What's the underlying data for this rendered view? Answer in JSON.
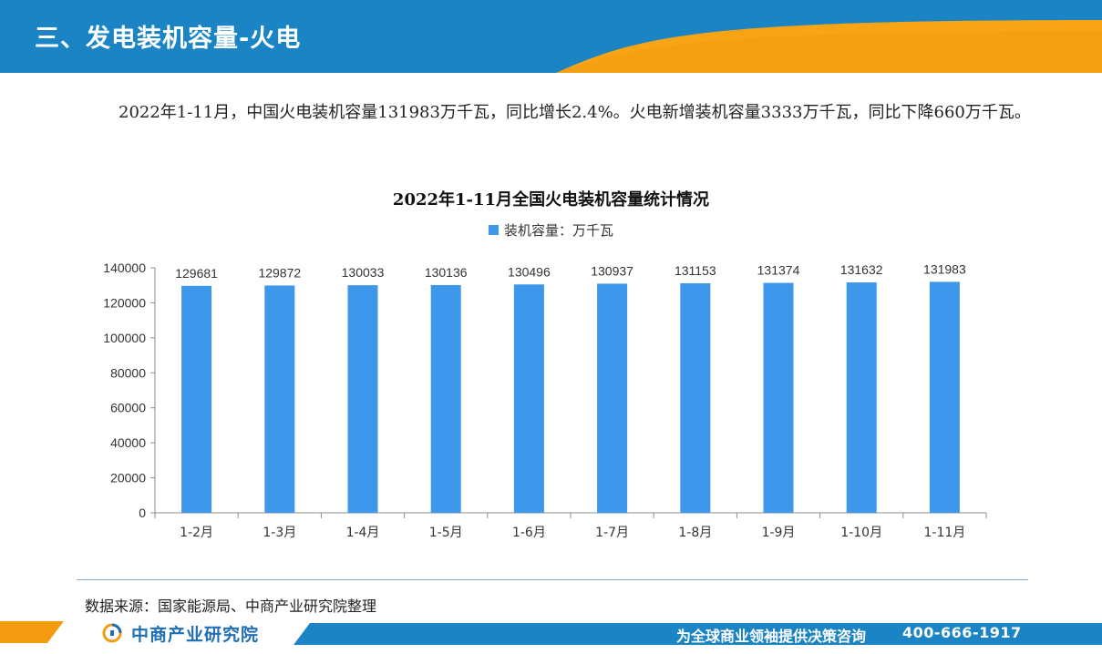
{
  "header": {
    "title": "三、发电装机容量-火电"
  },
  "summary": {
    "text": "2022年1-11月，中国火电装机容量131983万千瓦，同比增长2.4%。火电新增装机容量3333万千瓦，同比下降660万千瓦。"
  },
  "chart_data": {
    "type": "bar",
    "title": "2022年1-11月全国火电装机容量统计情况",
    "xlabel": "",
    "ylabel": "",
    "categories": [
      "1-2月",
      "1-3月",
      "1-4月",
      "1-5月",
      "1-6月",
      "1-7月",
      "1-8月",
      "1-9月",
      "1-10月",
      "1-11月"
    ],
    "series": [
      {
        "name": "装机容量：万千瓦",
        "values": [
          129681,
          129872,
          130033,
          130136,
          130496,
          130937,
          131153,
          131374,
          131632,
          131983
        ]
      }
    ],
    "ylim": [
      0,
      140000
    ],
    "yticks": [
      0,
      20000,
      40000,
      60000,
      80000,
      100000,
      120000,
      140000
    ],
    "grid": false,
    "legend_position": "top",
    "data_labels": true,
    "bar_color": "#3d97ea"
  },
  "source": {
    "text": "数据来源：国家能源局、中商产业研究院整理"
  },
  "footer": {
    "logo_text": "中商产业研究院",
    "slogan": "为全球商业领袖提供决策咨询",
    "phone": "400-666-1917"
  },
  "colors": {
    "header_blue": "#1b84c4",
    "accent_orange": "#f39c12",
    "bar": "#3d97ea"
  }
}
